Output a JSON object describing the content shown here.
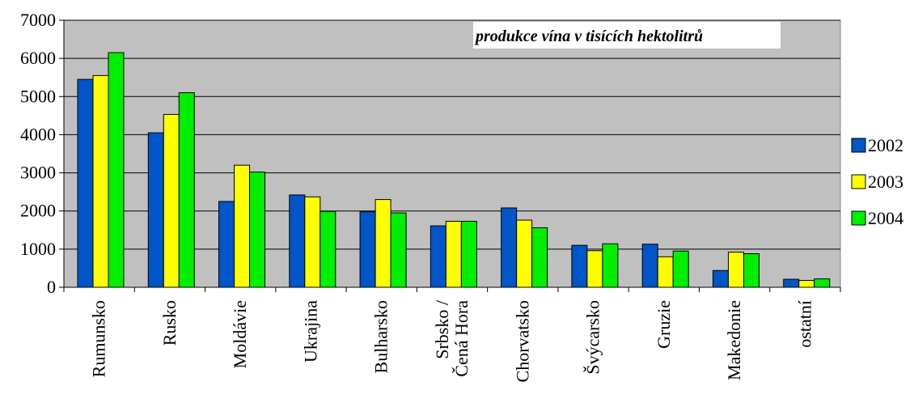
{
  "chart_data": {
    "type": "bar",
    "title": "produkce vína v tisících hektolitrů",
    "xlabel": "",
    "ylabel": "",
    "ylim": [
      0,
      7000
    ],
    "yticks": [
      0,
      1000,
      2000,
      3000,
      4000,
      5000,
      6000,
      7000
    ],
    "grid": true,
    "legend_position": "right",
    "categories": [
      [
        "Rumunsko"
      ],
      [
        "Rusko"
      ],
      [
        "Moldávie"
      ],
      [
        "Ukrajina"
      ],
      [
        "Bulharsko"
      ],
      [
        "Srbsko /",
        "Čená Hora"
      ],
      [
        "Chorvatsko"
      ],
      [
        "Švýcarsko"
      ],
      [
        "Gruzie"
      ],
      [
        "Makedonie"
      ],
      [
        "ostatní"
      ]
    ],
    "series": [
      {
        "name": "2002",
        "color": "#0055c8",
        "values": [
          5450,
          4050,
          2250,
          2420,
          1980,
          1610,
          2080,
          1100,
          1130,
          440,
          210
        ]
      },
      {
        "name": "2003",
        "color": "#ffff00",
        "values": [
          5550,
          4530,
          3200,
          2370,
          2300,
          1730,
          1760,
          960,
          800,
          920,
          180
        ]
      },
      {
        "name": "2004",
        "color": "#00ee00",
        "values": [
          6150,
          5100,
          3020,
          1990,
          1950,
          1730,
          1560,
          1140,
          950,
          880,
          220
        ]
      }
    ],
    "plot_background": "#c0c0c0",
    "grid_color": "#000000"
  }
}
